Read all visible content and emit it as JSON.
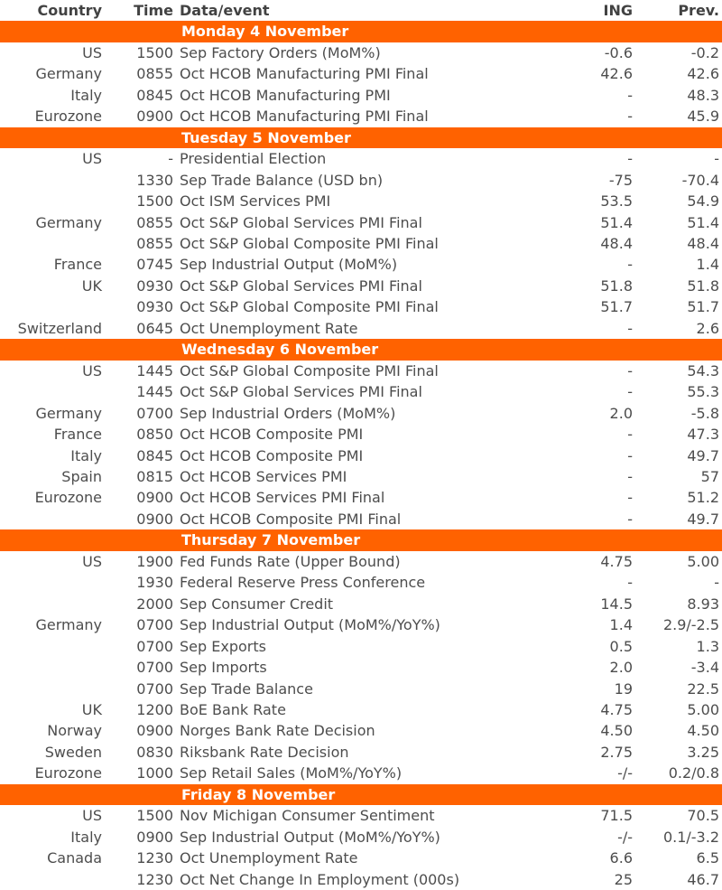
{
  "table": {
    "accent_color": "#FF6200",
    "text_color": "#4d4d4d",
    "headers": {
      "country": "Country",
      "time": "Time",
      "event": "Data/event",
      "ing": "ING",
      "prev": "Prev."
    },
    "sections": [
      {
        "title": "Monday 4 November",
        "rows": [
          {
            "country": "US",
            "time": "1500",
            "event": "Sep Factory Orders (MoM%)",
            "ing": "-0.6",
            "prev": "-0.2"
          },
          {
            "country": "Germany",
            "time": "0855",
            "event": "Oct HCOB Manufacturing PMI Final",
            "ing": "42.6",
            "prev": "42.6"
          },
          {
            "country": "Italy",
            "time": "0845",
            "event": "Oct HCOB Manufacturing PMI",
            "ing": "-",
            "prev": "48.3"
          },
          {
            "country": "Eurozone",
            "time": "0900",
            "event": "Oct HCOB Manufacturing PMI Final",
            "ing": "-",
            "prev": "45.9"
          }
        ]
      },
      {
        "title": "Tuesday 5 November",
        "rows": [
          {
            "country": "US",
            "time": "-",
            "event": "Presidential Election",
            "ing": "-",
            "prev": "-"
          },
          {
            "country": "",
            "time": "1330",
            "event": "Sep Trade Balance (USD bn)",
            "ing": "-75",
            "prev": "-70.4"
          },
          {
            "country": "",
            "time": "1500",
            "event": "Oct ISM Services PMI",
            "ing": "53.5",
            "prev": "54.9"
          },
          {
            "country": "Germany",
            "time": "0855",
            "event": "Oct S&P Global Services PMI Final",
            "ing": "51.4",
            "prev": "51.4"
          },
          {
            "country": "",
            "time": "0855",
            "event": "Oct S&P Global Composite PMI Final",
            "ing": "48.4",
            "prev": "48.4"
          },
          {
            "country": "France",
            "time": "0745",
            "event": "Sep Industrial Output (MoM%)",
            "ing": "-",
            "prev": "1.4"
          },
          {
            "country": "UK",
            "time": "0930",
            "event": "Oct S&P Global Services PMI Final",
            "ing": "51.8",
            "prev": "51.8"
          },
          {
            "country": "",
            "time": "0930",
            "event": "Oct S&P Global Composite PMI Final",
            "ing": "51.7",
            "prev": "51.7"
          },
          {
            "country": "Switzerland",
            "time": "0645",
            "event": "Oct Unemployment Rate",
            "ing": "-",
            "prev": "2.6"
          }
        ]
      },
      {
        "title": "Wednesday 6 November",
        "rows": [
          {
            "country": "US",
            "time": "1445",
            "event": "Oct S&P Global Composite PMI Final",
            "ing": "-",
            "prev": "54.3"
          },
          {
            "country": "",
            "time": "1445",
            "event": "Oct S&P Global Services PMI Final",
            "ing": "-",
            "prev": "55.3"
          },
          {
            "country": "Germany",
            "time": "0700",
            "event": "Sep Industrial Orders (MoM%)",
            "ing": "2.0",
            "prev": "-5.8"
          },
          {
            "country": "France",
            "time": "0850",
            "event": "Oct HCOB Composite PMI",
            "ing": "-",
            "prev": "47.3"
          },
          {
            "country": "Italy",
            "time": "0845",
            "event": "Oct HCOB Composite PMI",
            "ing": "-",
            "prev": "49.7"
          },
          {
            "country": "Spain",
            "time": "0815",
            "event": "Oct HCOB Services PMI",
            "ing": "-",
            "prev": "57"
          },
          {
            "country": "Eurozone",
            "time": "0900",
            "event": "Oct HCOB Services PMI Final",
            "ing": "-",
            "prev": "51.2"
          },
          {
            "country": "",
            "time": "0900",
            "event": "Oct HCOB Composite PMI Final",
            "ing": "-",
            "prev": "49.7"
          }
        ]
      },
      {
        "title": "Thursday 7 November",
        "rows": [
          {
            "country": "US",
            "time": "1900",
            "event": "Fed Funds Rate (Upper Bound)",
            "ing": "4.75",
            "prev": "5.00"
          },
          {
            "country": "",
            "time": "1930",
            "event": "Federal Reserve Press Conference",
            "ing": "-",
            "prev": "-"
          },
          {
            "country": "",
            "time": "2000",
            "event": "Sep Consumer Credit",
            "ing": "14.5",
            "prev": "8.93"
          },
          {
            "country": "Germany",
            "time": "0700",
            "event": "Sep Industrial Output (MoM%/YoY%)",
            "ing": "1.4",
            "prev": "2.9/-2.5"
          },
          {
            "country": "",
            "time": "0700",
            "event": "Sep Exports",
            "ing": "0.5",
            "prev": "1.3"
          },
          {
            "country": "",
            "time": "0700",
            "event": "Sep Imports",
            "ing": "2.0",
            "prev": "-3.4"
          },
          {
            "country": "",
            "time": "0700",
            "event": "Sep Trade Balance",
            "ing": "19",
            "prev": "22.5"
          },
          {
            "country": "UK",
            "time": "1200",
            "event": "BoE Bank Rate",
            "ing": "4.75",
            "prev": "5.00"
          },
          {
            "country": "Norway",
            "time": "0900",
            "event": "Norges Bank Rate Decision",
            "ing": "4.50",
            "prev": "4.50"
          },
          {
            "country": "Sweden",
            "time": "0830",
            "event": "Riksbank Rate Decision",
            "ing": "2.75",
            "prev": "3.25"
          },
          {
            "country": "Eurozone",
            "time": "1000",
            "event": "Sep Retail Sales (MoM%/YoY%)",
            "ing": "-/-",
            "prev": "0.2/0.8"
          }
        ]
      },
      {
        "title": "Friday 8 November",
        "rows": [
          {
            "country": "US",
            "time": "1500",
            "event": "Nov Michigan Consumer Sentiment",
            "ing": "71.5",
            "prev": "70.5"
          },
          {
            "country": "Italy",
            "time": "0900",
            "event": "Sep Industrial Output (MoM%/YoY%)",
            "ing": "-/-",
            "prev": "0.1/-3.2"
          },
          {
            "country": "Canada",
            "time": "1230",
            "event": "Oct Unemployment Rate",
            "ing": "6.6",
            "prev": "6.5"
          },
          {
            "country": "",
            "time": "1230",
            "event": "Oct Net Change In Employment (000s)",
            "ing": "25",
            "prev": "46.7"
          }
        ]
      }
    ]
  }
}
